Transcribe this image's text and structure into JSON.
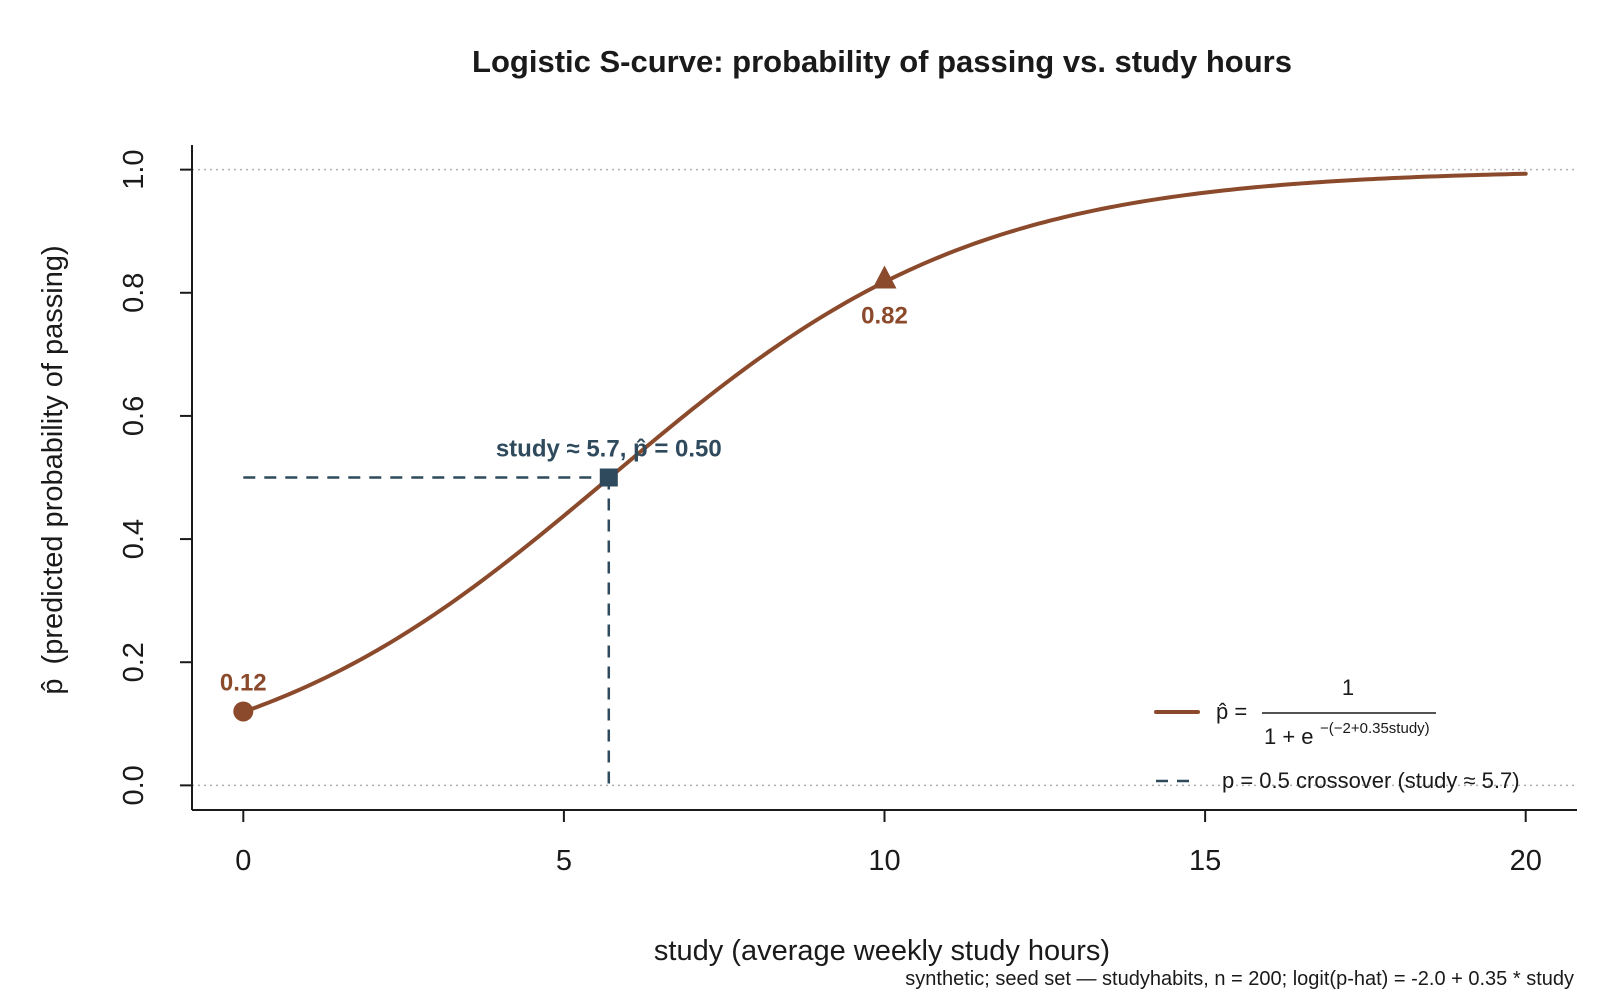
{
  "chart_data": {
    "type": "line",
    "title": "Logistic S-curve: probability of passing vs. study hours",
    "xlabel": "study (average weekly study hours)",
    "ylabel": "(predicted probability of passing)",
    "ylabel_symbol": "p̂",
    "caption": "synthetic; seed set — studyhabits, n = 200; logit(p-hat) = -2.0 + 0.35 * study",
    "xlim": [
      -0.8,
      20.8
    ],
    "ylim": [
      -0.04,
      1.04
    ],
    "x_ticks": [
      0,
      5,
      10,
      15,
      20
    ],
    "x_tick_labels": [
      "0",
      "5",
      "10",
      "15",
      "20"
    ],
    "y_ticks": [
      0,
      0.2,
      0.4,
      0.6,
      0.8,
      1.0
    ],
    "y_tick_labels": [
      "0.0",
      "0.2",
      "0.4",
      "0.6",
      "0.8",
      "1.0"
    ],
    "reference_lines": [
      0,
      1
    ],
    "grid": false,
    "legend_position": "bottom-right",
    "model": {
      "intercept": -2.0,
      "slope": 0.35
    },
    "series": [
      {
        "name": "p̂ = 1 / (1 + e^−(−2+0.35study))",
        "x": [
          0,
          1,
          2,
          3,
          4,
          5,
          6,
          7,
          8,
          9,
          10,
          11,
          12,
          13,
          14,
          15,
          16,
          17,
          18,
          19,
          20
        ],
        "values": [
          0.119,
          0.16,
          0.214,
          0.279,
          0.354,
          0.438,
          0.525,
          0.611,
          0.69,
          0.76,
          0.818,
          0.865,
          0.9,
          0.928,
          0.948,
          0.963,
          0.973,
          0.981,
          0.987,
          0.99,
          0.993
        ],
        "color": "#8b4a2b"
      }
    ],
    "highlight_points": [
      {
        "x": 0,
        "y": 0.12,
        "label": "0.12",
        "marker": "circle",
        "color": "#8b4a2b"
      },
      {
        "x": 10,
        "y": 0.82,
        "label": "0.82",
        "marker": "triangle",
        "color": "#8b4a2b"
      },
      {
        "x": 5.7,
        "y": 0.5,
        "label": "study ≈ 5.7, p̂ = 0.50",
        "marker": "square",
        "color": "#2e4a5c"
      }
    ],
    "crossover": {
      "x": 5.7,
      "y": 0.5,
      "color": "#2e4a5c"
    },
    "legend": {
      "formula_lhs": "p̂ =",
      "formula_numerator": "1",
      "formula_denominator": "1 + e",
      "formula_exponent": "−(−2+0.35study)",
      "crossover_label": "p = 0.5 crossover (study ≈ 5.7)"
    },
    "colors": {
      "curve": "#8b4a2b",
      "crossover": "#2e4a5c",
      "reference": "#b0b0b0",
      "axis": "#1a1a1a"
    }
  }
}
